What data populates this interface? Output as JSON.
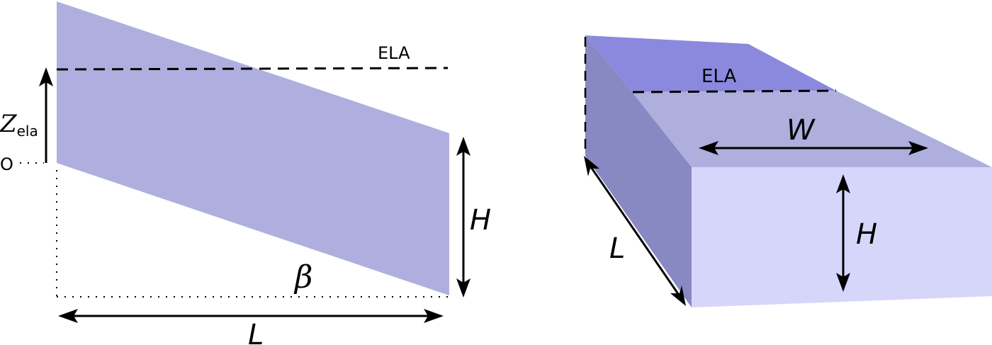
{
  "left_panel": {
    "ela_label": "ELA",
    "z_main": "Z",
    "z_sub": "ela",
    "origin_label": "O",
    "height_label": "H",
    "angle_label": "β",
    "length_label": "L",
    "colors": {
      "slab": "#afafdf",
      "line": "#000000"
    }
  },
  "right_panel": {
    "ela_label": "ELA",
    "width_label": "W",
    "height_label": "H",
    "length_label": "L",
    "colors": {
      "top_upper": "#8b89dd",
      "top_lower": "#afafdd",
      "side": "#8888c2",
      "front": "#d6d6fb",
      "line": "#000000"
    }
  }
}
